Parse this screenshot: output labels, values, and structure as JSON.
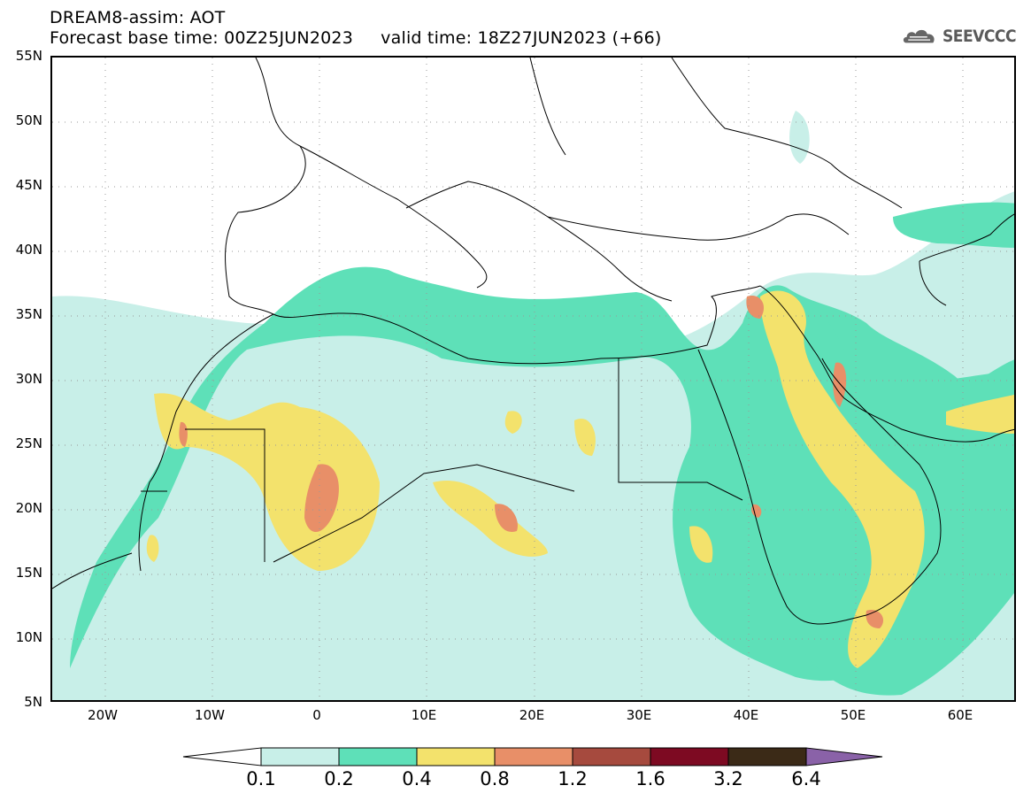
{
  "header": {
    "title_line1": "DREAM8-assim: AOT",
    "title_line2": "Forecast base time: 00Z25JUN2023     valid time: 18Z27JUN2023 (+66)"
  },
  "logo": {
    "icon": "cloud-logo-icon",
    "text": "SEEVCCC"
  },
  "map": {
    "y_axis_labels": [
      "55N",
      "50N",
      "45N",
      "40N",
      "35N",
      "30N",
      "25N",
      "20N",
      "15N",
      "10N",
      "5N"
    ],
    "x_axis_labels": [
      "20W",
      "10W",
      "0",
      "10E",
      "20E",
      "30E",
      "40E",
      "50E",
      "60E"
    ],
    "lat_range": [
      5,
      55
    ],
    "lon_range": [
      -25,
      65
    ]
  },
  "legend": {
    "labels": [
      "0.1",
      "0.2",
      "0.4",
      "0.8",
      "1.2",
      "1.6",
      "3.2",
      "6.4"
    ],
    "colors": [
      "#ffffff",
      "#c8efe8",
      "#5ee0b8",
      "#f3e26c",
      "#e88f68",
      "#a64a3e",
      "#7d0a22",
      "#3b2a17",
      "#8a62a8"
    ]
  }
}
